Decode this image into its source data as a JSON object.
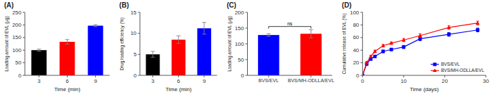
{
  "chart_data": [
    {
      "type": "bar",
      "title": "(A)",
      "xlabel": "Time (min)",
      "ylabel": "Loading amount of EVL (μg)",
      "x": [
        3,
        6,
        9
      ],
      "values": [
        100,
        133,
        197
      ],
      "errors": [
        4,
        9,
        4
      ],
      "colors": [
        "black",
        "red",
        "blue"
      ],
      "xlim": [
        1.5,
        10.5
      ],
      "xticks": [
        3,
        6,
        9
      ],
      "ylim": [
        0,
        250
      ],
      "yticks": [
        0,
        50,
        100,
        150,
        200,
        250
      ]
    },
    {
      "type": "bar",
      "title": "(B)",
      "xlabel": "Time (min)",
      "ylabel": "Drug loading efficiency (%)",
      "x": [
        3,
        6,
        9
      ],
      "values": [
        5.0,
        8.5,
        11.2
      ],
      "errors": [
        0.7,
        0.9,
        1.4
      ],
      "colors": [
        "black",
        "red",
        "blue"
      ],
      "xlim": [
        1.5,
        10.5
      ],
      "xticks": [
        3,
        6,
        9
      ],
      "ylim": [
        0,
        15
      ],
      "yticks": [
        0,
        5,
        10,
        15
      ]
    },
    {
      "type": "bar",
      "title": "(C)",
      "ylabel": "Loading amount of EVL (μg)",
      "categories": [
        "BVS/EVL",
        "BVS/MH-ODLLA/EVL"
      ],
      "values": [
        128,
        132
      ],
      "errors": [
        4,
        13
      ],
      "colors": [
        "blue",
        "red"
      ],
      "ylim": [
        0,
        200
      ],
      "yticks": [
        0,
        50,
        100,
        150,
        200
      ],
      "annotations": [
        {
          "text": "ns",
          "y": 155,
          "from": 0,
          "to": 1
        }
      ]
    },
    {
      "type": "line",
      "title": "(D)",
      "xlabel": "Time (days)",
      "ylabel": "Cumulative release of EVL (%)",
      "x": [
        0,
        1,
        2,
        3,
        5,
        7,
        10,
        14,
        21,
        28
      ],
      "series": [
        {
          "name": "BVS/EVL",
          "color": "blue",
          "marker": "square",
          "values": [
            0,
            18,
            26,
            30,
            38,
            41,
            45,
            58,
            65,
            72
          ],
          "errors": [
            0,
            2.0,
            2.0,
            2.0,
            2.0,
            2.0,
            2.5,
            3.0,
            3.0,
            3.0
          ]
        },
        {
          "name": "BVS/MH-ODLLA/EVL",
          "color": "red",
          "marker": "triangle",
          "values": [
            0,
            20,
            30,
            38,
            47,
            51,
            56,
            63,
            76,
            83
          ],
          "errors": [
            0,
            2.0,
            2.0,
            2.0,
            2.0,
            2.0,
            2.5,
            3.0,
            3.0,
            3.0
          ]
        }
      ],
      "xlim": [
        0,
        30
      ],
      "xticks": [
        0,
        10,
        20,
        30
      ],
      "ylim": [
        0,
        100
      ],
      "yticks": [
        0,
        20,
        40,
        60,
        80,
        100
      ],
      "legend": "lower right"
    }
  ]
}
